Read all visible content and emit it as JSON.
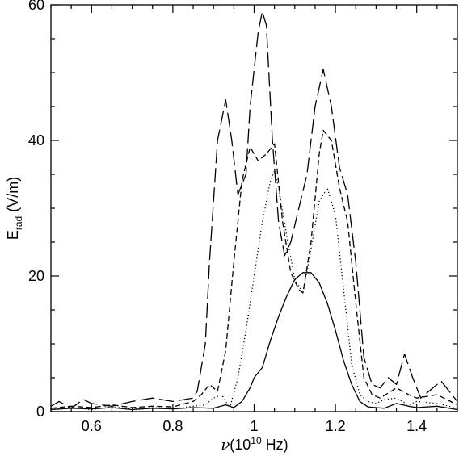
{
  "chart_data": {
    "type": "line",
    "xlim": [
      0.5,
      1.5
    ],
    "ylim": [
      0,
      60
    ],
    "x_ticks": [
      {
        "value": 0.6,
        "label": "0.6"
      },
      {
        "value": 0.8,
        "label": "0.8"
      },
      {
        "value": 1.0,
        "label": "1"
      },
      {
        "value": 1.2,
        "label": "1.2"
      },
      {
        "value": 1.4,
        "label": "1.4"
      }
    ],
    "y_ticks": [
      {
        "value": 0,
        "label": "0"
      },
      {
        "value": 20,
        "label": "20"
      },
      {
        "value": 40,
        "label": "40"
      },
      {
        "value": 60,
        "label": "60"
      }
    ],
    "xlabel": {
      "symbol": "ν",
      "text": "(10",
      "exp": "10",
      "unit": " Hz)"
    },
    "ylabel": {
      "main": "E",
      "sub": "rad",
      "unit": " (V/m)"
    },
    "series": [
      {
        "style": "solid",
        "x": [
          0.5,
          0.55,
          0.6,
          0.65,
          0.7,
          0.75,
          0.8,
          0.85,
          0.9,
          0.93,
          0.95,
          0.97,
          0.99,
          1.0,
          1.02,
          1.04,
          1.06,
          1.08,
          1.1,
          1.12,
          1.14,
          1.16,
          1.18,
          1.2,
          1.22,
          1.24,
          1.26,
          1.28,
          1.3,
          1.32,
          1.35,
          1.38,
          1.4,
          1.45,
          1.5
        ],
        "y": [
          0.3,
          0.5,
          0.4,
          0.6,
          0.3,
          0.5,
          0.4,
          0.6,
          0.5,
          1.0,
          0.6,
          1.5,
          3.5,
          5.0,
          6.5,
          10.5,
          14.0,
          17.0,
          19.5,
          20.5,
          20.5,
          19.0,
          16.0,
          12.0,
          7.5,
          4.0,
          1.5,
          0.7,
          0.6,
          0.5,
          1.2,
          0.8,
          0.6,
          0.8,
          0.3
        ]
      },
      {
        "style": "dotted",
        "x": [
          0.5,
          0.55,
          0.6,
          0.65,
          0.7,
          0.75,
          0.8,
          0.85,
          0.88,
          0.9,
          0.92,
          0.94,
          0.96,
          0.98,
          1.0,
          1.02,
          1.04,
          1.05,
          1.06,
          1.08,
          1.1,
          1.12,
          1.14,
          1.16,
          1.18,
          1.2,
          1.22,
          1.24,
          1.26,
          1.28,
          1.3,
          1.32,
          1.35,
          1.38,
          1.4,
          1.45,
          1.5
        ],
        "y": [
          0.4,
          0.6,
          0.3,
          0.7,
          0.4,
          0.6,
          0.4,
          0.8,
          1.0,
          2.0,
          2.5,
          0.5,
          5.0,
          12.0,
          20.0,
          28.0,
          34.0,
          35.5,
          33.0,
          26.0,
          19.5,
          17.5,
          24.0,
          31.0,
          33.0,
          29.0,
          18.0,
          7.0,
          2.5,
          1.5,
          1.2,
          1.8,
          2.0,
          1.0,
          1.5,
          1.2,
          0.5
        ]
      },
      {
        "style": "short-dash",
        "x": [
          0.5,
          0.55,
          0.6,
          0.65,
          0.7,
          0.75,
          0.8,
          0.85,
          0.87,
          0.89,
          0.91,
          0.93,
          0.95,
          0.97,
          0.99,
          1.01,
          1.03,
          1.05,
          1.07,
          1.09,
          1.11,
          1.12,
          1.14,
          1.16,
          1.17,
          1.19,
          1.21,
          1.23,
          1.25,
          1.27,
          1.29,
          1.31,
          1.35,
          1.38,
          1.4,
          1.45,
          1.5
        ],
        "y": [
          0.5,
          0.8,
          0.6,
          1.0,
          0.6,
          0.8,
          0.7,
          1.5,
          2.5,
          4.0,
          3.0,
          9.0,
          22.0,
          34.0,
          39.0,
          37.0,
          38.0,
          39.5,
          28.0,
          20.5,
          18.0,
          17.5,
          25.0,
          38.0,
          41.5,
          40.0,
          33.0,
          28.0,
          16.0,
          5.0,
          2.5,
          2.0,
          3.5,
          2.5,
          2.0,
          2.5,
          1.0
        ]
      },
      {
        "style": "long-dash",
        "x": [
          0.5,
          0.52,
          0.55,
          0.58,
          0.6,
          0.65,
          0.7,
          0.75,
          0.8,
          0.85,
          0.86,
          0.88,
          0.89,
          0.91,
          0.93,
          0.945,
          0.96,
          0.98,
          0.99,
          1.01,
          1.02,
          1.03,
          1.045,
          1.06,
          1.075,
          1.09,
          1.11,
          1.13,
          1.15,
          1.17,
          1.19,
          1.21,
          1.23,
          1.25,
          1.27,
          1.29,
          1.31,
          1.33,
          1.35,
          1.37,
          1.39,
          1.41,
          1.43,
          1.46,
          1.48,
          1.5
        ],
        "y": [
          0.8,
          1.5,
          0.5,
          1.8,
          1.2,
          0.8,
          1.5,
          2.0,
          1.5,
          2.0,
          3.0,
          10.0,
          22.0,
          40.0,
          46.0,
          40.0,
          32.0,
          35.0,
          45.0,
          56.0,
          59.0,
          57.0,
          40.0,
          28.0,
          23.0,
          25.0,
          30.0,
          35.0,
          45.0,
          50.5,
          45.0,
          36.0,
          32.0,
          22.0,
          8.0,
          4.0,
          3.5,
          5.0,
          4.0,
          8.5,
          5.0,
          2.0,
          3.0,
          4.5,
          3.0,
          1.5
        ]
      }
    ]
  }
}
